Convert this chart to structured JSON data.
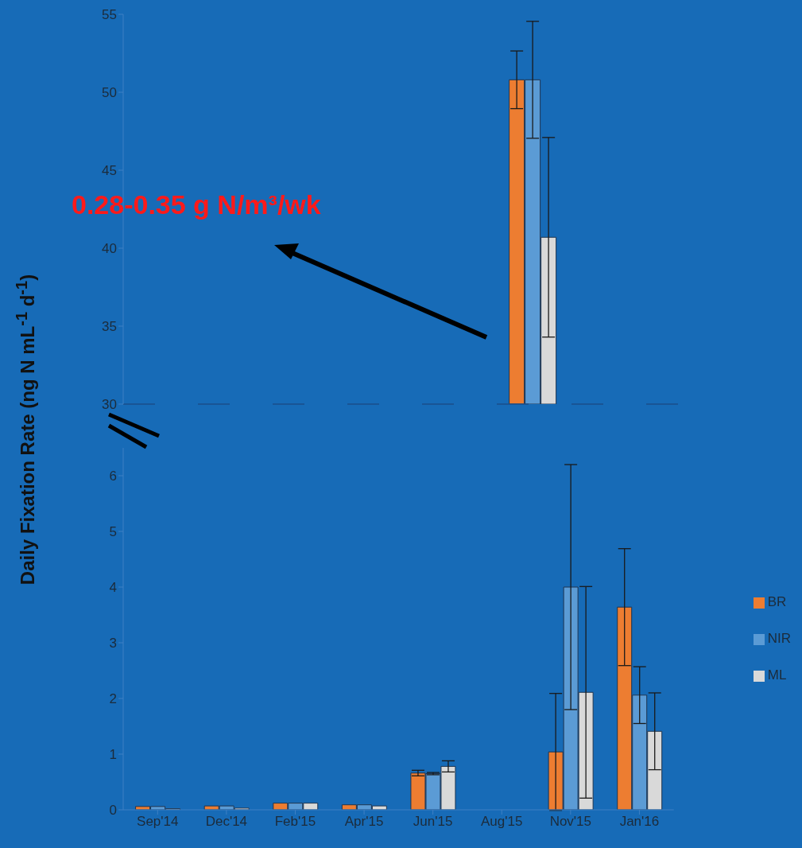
{
  "chart_data": [
    {
      "type": "bar",
      "ylabel": "Daily Fixation Rate (ng N mL$^{-1}$ d$^{-1}$)",
      "annotations": [
        "0.28-0.35 g N/m³/wk"
      ],
      "categories": [
        null,
        null,
        null,
        null,
        null,
        null,
        null,
        null
      ],
      "series": [
        {
          "color": "#ed7d31",
          "values": [
            null,
            null,
            null,
            null,
            null,
            50.8,
            null,
            null
          ],
          "errors": [
            null,
            null,
            null,
            null,
            null,
            1.85,
            null,
            null
          ]
        },
        {
          "color": "#5b9bd5",
          "values": [
            null,
            null,
            null,
            null,
            null,
            50.8,
            null,
            null
          ],
          "errors": [
            null,
            null,
            null,
            null,
            null,
            3.75,
            null,
            null
          ]
        },
        {
          "color": "#d9d9d9",
          "values": [
            null,
            null,
            null,
            null,
            null,
            40.7,
            null,
            null
          ],
          "errors": [
            null,
            null,
            null,
            null,
            null,
            6.4,
            null,
            null
          ]
        }
      ],
      "ylim": [
        30,
        55
      ],
      "yticks": [
        30,
        35,
        40,
        45,
        50,
        55
      ],
      "tick_labels": "y",
      "ref_lines": [
        {
          "axis": "y",
          "value": 30,
          "color": "#1b4f8a",
          "line_style": "dashed"
        }
      ]
    },
    {
      "type": "bar",
      "categories": [
        "Sep'14",
        "Dec'14",
        "Feb'15",
        "Apr'15",
        "Jun'15",
        "Aug'15",
        "Nov'15",
        "Jan'16"
      ],
      "series": [
        {
          "name": "BR",
          "color": "#ed7d31",
          "values": [
            0.06,
            0.07,
            0.12,
            0.09,
            0.66,
            null,
            1.04,
            3.64
          ],
          "errors": [
            null,
            null,
            null,
            null,
            0.05,
            null,
            1.05,
            1.05
          ]
        },
        {
          "name": "NIR",
          "color": "#5b9bd5",
          "values": [
            0.06,
            0.07,
            0.12,
            0.09,
            0.65,
            null,
            4.0,
            2.06
          ],
          "errors": [
            null,
            null,
            null,
            null,
            0.02,
            null,
            2.2,
            0.51
          ]
        },
        {
          "name": "ML",
          "color": "#d9d9d9",
          "values": [
            0.02,
            0.03,
            0.12,
            0.07,
            0.78,
            null,
            2.11,
            1.41
          ],
          "errors": [
            null,
            null,
            null,
            null,
            0.1,
            null,
            1.9,
            0.69
          ]
        }
      ],
      "ylim": [
        0,
        6.5
      ],
      "yticks": [
        0,
        1,
        2,
        3,
        4,
        5,
        6
      ],
      "legend": "right"
    }
  ]
}
